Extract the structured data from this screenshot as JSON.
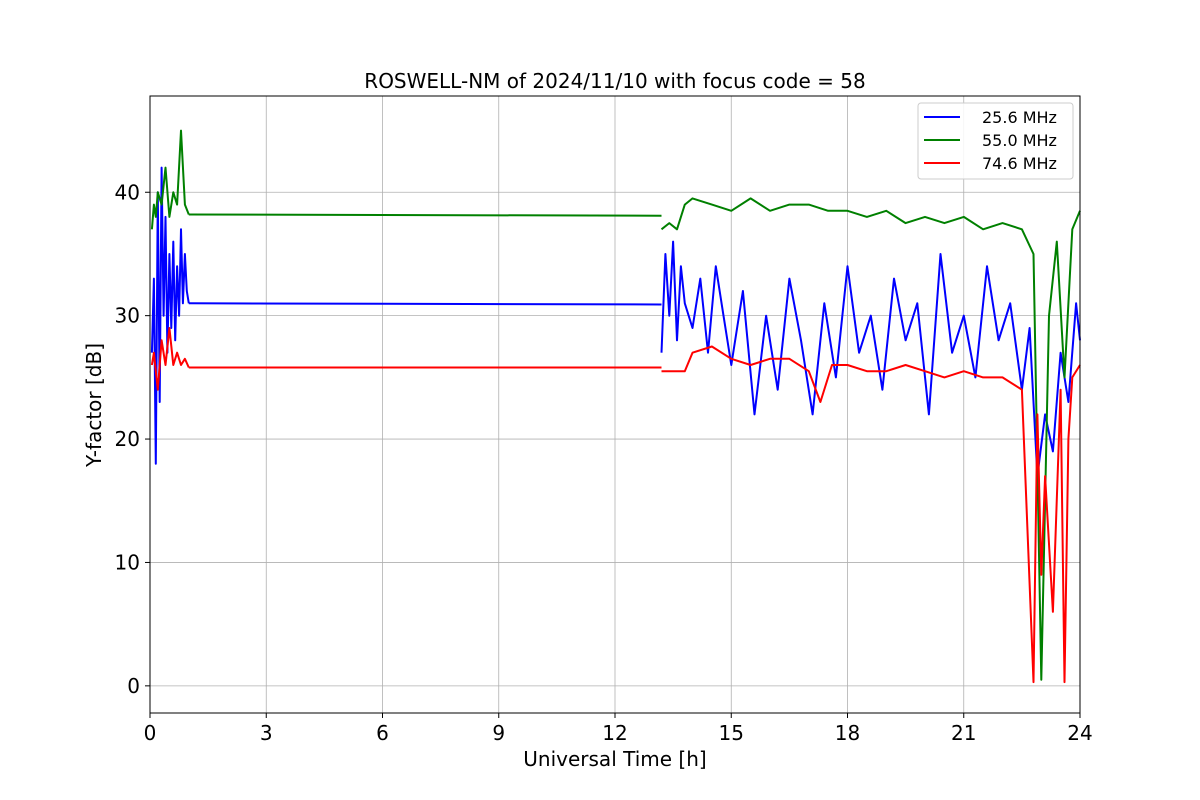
{
  "chart_data": {
    "type": "line",
    "title": "ROSWELL-NM of 2024/11/10 with focus code = 58",
    "xlabel": "Universal Time [h]",
    "ylabel": "Y-factor [dB]",
    "xlim": [
      0,
      24
    ],
    "ylim": [
      -2.2,
      47.8
    ],
    "xticks": [
      0,
      3,
      6,
      9,
      12,
      15,
      18,
      21,
      24
    ],
    "yticks": [
      0,
      10,
      20,
      30,
      40
    ],
    "xtick_labels": [
      "0",
      "3",
      "6",
      "9",
      "12",
      "15",
      "18",
      "21",
      "24"
    ],
    "ytick_labels": [
      "0",
      "10",
      "20",
      "30",
      "40"
    ],
    "grid": true,
    "legend_position": "top-right",
    "series": [
      {
        "name": "25.6 MHz",
        "color": "#0000ff",
        "segments": [
          {
            "x": [
              0.05,
              0.1,
              0.15,
              0.2,
              0.25,
              0.3,
              0.35,
              0.4,
              0.45,
              0.5,
              0.55,
              0.6,
              0.65,
              0.7,
              0.75,
              0.8,
              0.85,
              0.9,
              0.95,
              1.0
            ],
            "y": [
              27,
              33,
              18,
              40,
              23,
              42,
              30,
              38,
              27,
              35,
              29,
              36,
              28,
              34,
              30,
              37,
              31,
              35,
              32,
              31
            ]
          },
          {
            "x": [
              1.0,
              13.2
            ],
            "y": [
              31,
              30.9
            ]
          },
          {
            "x": [
              13.2,
              13.3,
              13.4,
              13.5,
              13.6,
              13.7,
              13.8,
              14.0,
              14.2,
              14.4,
              14.6,
              14.8,
              15.0,
              15.3,
              15.6,
              15.9,
              16.2,
              16.5,
              16.8,
              17.1,
              17.4,
              17.7,
              18.0,
              18.3,
              18.6,
              18.9,
              19.2,
              19.5,
              19.8,
              20.1,
              20.4,
              20.7,
              21.0,
              21.3,
              21.6,
              21.9,
              22.2,
              22.5,
              22.7,
              22.9,
              23.1,
              23.3,
              23.5,
              23.7,
              23.9,
              24.0
            ],
            "y": [
              27,
              35,
              30,
              36,
              28,
              34,
              31,
              29,
              33,
              27,
              34,
              30,
              26,
              32,
              22,
              30,
              24,
              33,
              28,
              22,
              31,
              25,
              34,
              27,
              30,
              24,
              33,
              28,
              31,
              22,
              35,
              27,
              30,
              25,
              34,
              28,
              31,
              24,
              29,
              17,
              22,
              19,
              27,
              23,
              31,
              28
            ]
          }
        ]
      },
      {
        "name": "55.0 MHz",
        "color": "#008000",
        "segments": [
          {
            "x": [
              0.05,
              0.1,
              0.15,
              0.2,
              0.3,
              0.4,
              0.5,
              0.6,
              0.7,
              0.8,
              0.9,
              1.0
            ],
            "y": [
              37,
              39,
              38,
              40,
              39,
              42,
              38,
              40,
              39,
              45,
              39,
              38.2
            ]
          },
          {
            "x": [
              1.0,
              13.2
            ],
            "y": [
              38.2,
              38.1
            ]
          },
          {
            "x": [
              13.2,
              13.4,
              13.6,
              13.8,
              14.0,
              14.5,
              15.0,
              15.5,
              16.0,
              16.5,
              17.0,
              17.5,
              18.0,
              18.5,
              19.0,
              19.5,
              20.0,
              20.5,
              21.0,
              21.5,
              22.0,
              22.5,
              22.8,
              23.0,
              23.2,
              23.4,
              23.6,
              23.8,
              24.0
            ],
            "y": [
              37,
              37.5,
              37,
              39,
              39.5,
              39,
              38.5,
              39.5,
              38.5,
              39,
              39,
              38.5,
              38.5,
              38,
              38.5,
              37.5,
              38,
              37.5,
              38,
              37,
              37.5,
              37,
              35,
              0.5,
              30,
              36,
              25,
              37,
              38.5
            ]
          }
        ]
      },
      {
        "name": "74.6 MHz",
        "color": "#ff0000",
        "segments": [
          {
            "x": [
              0.05,
              0.1,
              0.2,
              0.3,
              0.4,
              0.5,
              0.6,
              0.7,
              0.8,
              0.9,
              1.0
            ],
            "y": [
              26,
              27,
              24,
              28,
              26,
              29,
              26,
              27,
              26,
              26.5,
              25.8
            ]
          },
          {
            "x": [
              1.0,
              13.2
            ],
            "y": [
              25.8,
              25.8
            ]
          },
          {
            "x": [
              13.2,
              13.5,
              13.8,
              14.0,
              14.5,
              15.0,
              15.5,
              16.0,
              16.5,
              17.0,
              17.3,
              17.6,
              18.0,
              18.5,
              19.0,
              19.5,
              20.0,
              20.5,
              21.0,
              21.5,
              22.0,
              22.5,
              22.8,
              22.9,
              23.0,
              23.1,
              23.3,
              23.5,
              23.6,
              23.7,
              23.8,
              24.0
            ],
            "y": [
              25.5,
              25.5,
              25.5,
              27,
              27.5,
              26.5,
              26,
              26.5,
              26.5,
              25.5,
              23,
              26,
              26,
              25.5,
              25.5,
              26,
              25.5,
              25,
              25.5,
              25,
              25,
              24,
              0.3,
              22,
              9,
              17,
              6,
              24,
              0.3,
              20,
              25,
              26
            ]
          }
        ]
      }
    ]
  }
}
